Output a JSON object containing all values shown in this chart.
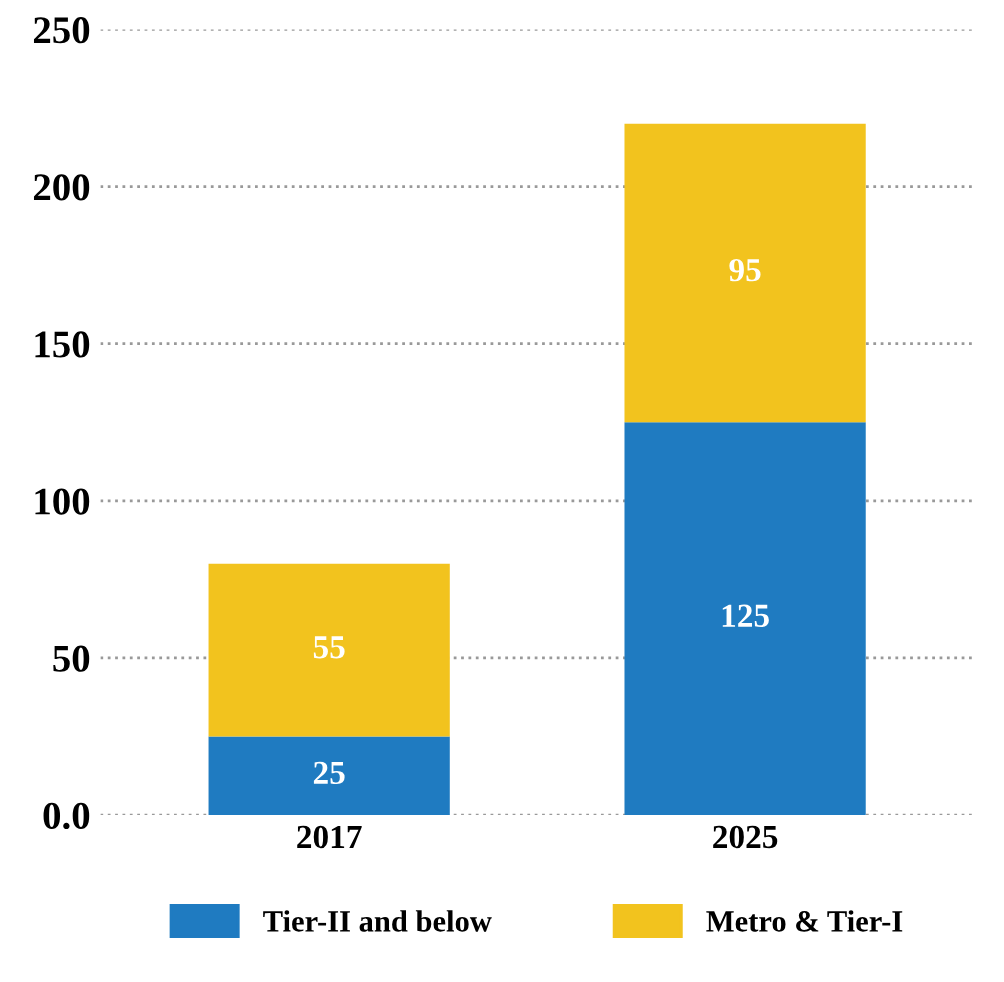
{
  "chart_data": {
    "type": "bar",
    "stacked": true,
    "categories": [
      "2017",
      "2025"
    ],
    "series": [
      {
        "name": "Tier-II and below",
        "color": "#1f7bc1",
        "values": [
          25,
          125
        ]
      },
      {
        "name": "Metro & Tier-I",
        "color": "#f2c31e",
        "values": [
          55,
          95
        ]
      }
    ],
    "ylim": [
      0,
      250
    ],
    "yticks": [
      {
        "value": 0,
        "label": "0.0"
      },
      50,
      100,
      150,
      200,
      250
    ],
    "grid": "y",
    "legend": "bottom",
    "data_labels": true
  }
}
